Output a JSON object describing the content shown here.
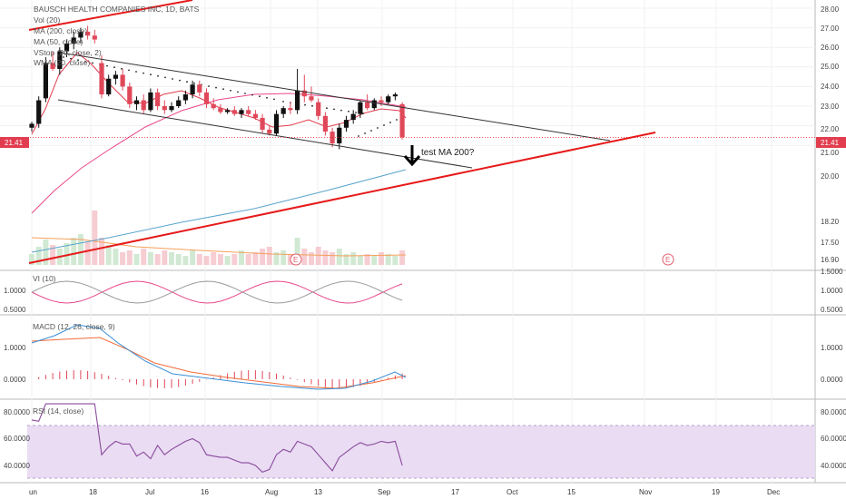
{
  "chart_data": {
    "type": "candlestick",
    "title": "BAUSCH HEALTH COMPANIES INC, 1D, BATS",
    "legend": [
      "Vol (20)",
      "MA (200, close)",
      "MA (50, close)",
      "VStop (20, close, 2)",
      "WMA (20, close)"
    ],
    "price_axis_ticks": [
      "28.00",
      "27.00",
      "26.00",
      "25.00",
      "24.00",
      "23.00",
      "22.00",
      "21.00",
      "20.00",
      "18.20",
      "17.50",
      "16.90"
    ],
    "last_price_label": "21.41",
    "last_price": 21.41,
    "x_axis_labels": [
      "un",
      "18",
      "Jul",
      "16",
      "Aug",
      "13",
      "Sep",
      "17",
      "Oct",
      "15",
      "Nov",
      "19",
      "Dec"
    ],
    "earnings_markers": [
      "E",
      "E"
    ],
    "annotation": "test MA 200?",
    "ohlc": [
      {
        "o": 21.9,
        "h": 22.2,
        "l": 21.7,
        "c": 22.1
      },
      {
        "o": 22.1,
        "h": 23.5,
        "l": 21.9,
        "c": 23.3
      },
      {
        "o": 23.4,
        "h": 25.5,
        "l": 23.2,
        "c": 25.2
      },
      {
        "o": 25.2,
        "h": 25.8,
        "l": 24.8,
        "c": 24.9
      },
      {
        "o": 24.9,
        "h": 26.0,
        "l": 24.6,
        "c": 25.8
      },
      {
        "o": 25.8,
        "h": 26.4,
        "l": 25.5,
        "c": 26.2
      },
      {
        "o": 26.2,
        "h": 26.8,
        "l": 25.9,
        "c": 26.5
      },
      {
        "o": 26.5,
        "h": 27.0,
        "l": 26.2,
        "c": 26.8
      },
      {
        "o": 26.8,
        "h": 27.1,
        "l": 26.4,
        "c": 26.6
      },
      {
        "o": 26.6,
        "h": 26.9,
        "l": 26.2,
        "c": 26.4
      },
      {
        "o": 25.2,
        "h": 25.6,
        "l": 23.4,
        "c": 23.6
      },
      {
        "o": 23.6,
        "h": 24.6,
        "l": 23.5,
        "c": 24.4
      },
      {
        "o": 24.4,
        "h": 24.8,
        "l": 24.1,
        "c": 24.6
      },
      {
        "o": 24.6,
        "h": 24.9,
        "l": 23.8,
        "c": 24.0
      },
      {
        "o": 24.0,
        "h": 24.2,
        "l": 22.9,
        "c": 23.1
      },
      {
        "o": 23.1,
        "h": 23.5,
        "l": 22.8,
        "c": 23.3
      },
      {
        "o": 23.3,
        "h": 23.6,
        "l": 22.6,
        "c": 22.8
      },
      {
        "o": 22.8,
        "h": 23.9,
        "l": 22.7,
        "c": 23.7
      },
      {
        "o": 23.7,
        "h": 23.9,
        "l": 22.8,
        "c": 23.0
      },
      {
        "o": 23.0,
        "h": 23.3,
        "l": 22.6,
        "c": 22.8
      },
      {
        "o": 22.8,
        "h": 23.2,
        "l": 22.7,
        "c": 23.0
      },
      {
        "o": 23.0,
        "h": 23.5,
        "l": 22.9,
        "c": 23.3
      },
      {
        "o": 23.3,
        "h": 23.8,
        "l": 23.1,
        "c": 23.6
      },
      {
        "o": 23.6,
        "h": 24.3,
        "l": 23.4,
        "c": 24.1
      },
      {
        "o": 24.1,
        "h": 24.3,
        "l": 23.5,
        "c": 23.7
      },
      {
        "o": 23.7,
        "h": 23.9,
        "l": 22.9,
        "c": 23.1
      },
      {
        "o": 23.1,
        "h": 23.4,
        "l": 22.8,
        "c": 22.9
      },
      {
        "o": 22.9,
        "h": 23.1,
        "l": 22.6,
        "c": 22.7
      },
      {
        "o": 22.7,
        "h": 22.9,
        "l": 22.6,
        "c": 22.8
      },
      {
        "o": 22.8,
        "h": 23.0,
        "l": 22.5,
        "c": 22.6
      },
      {
        "o": 22.6,
        "h": 22.9,
        "l": 22.4,
        "c": 22.8
      },
      {
        "o": 22.8,
        "h": 23.0,
        "l": 22.5,
        "c": 22.6
      },
      {
        "o": 22.6,
        "h": 22.8,
        "l": 22.3,
        "c": 22.4
      },
      {
        "o": 22.4,
        "h": 22.6,
        "l": 21.6,
        "c": 21.8
      },
      {
        "o": 21.8,
        "h": 22.0,
        "l": 21.5,
        "c": 21.6
      },
      {
        "o": 21.6,
        "h": 22.8,
        "l": 21.5,
        "c": 22.6
      },
      {
        "o": 22.6,
        "h": 23.0,
        "l": 22.4,
        "c": 22.9
      },
      {
        "o": 22.9,
        "h": 23.2,
        "l": 22.6,
        "c": 22.8
      },
      {
        "o": 22.8,
        "h": 24.9,
        "l": 22.6,
        "c": 23.8
      },
      {
        "o": 23.8,
        "h": 24.6,
        "l": 23.2,
        "c": 23.5
      },
      {
        "o": 23.5,
        "h": 24.0,
        "l": 23.2,
        "c": 23.3
      },
      {
        "o": 23.2,
        "h": 23.4,
        "l": 22.3,
        "c": 22.5
      },
      {
        "o": 22.5,
        "h": 22.7,
        "l": 21.5,
        "c": 21.7
      },
      {
        "o": 21.7,
        "h": 21.9,
        "l": 20.9,
        "c": 21.1
      },
      {
        "o": 21.1,
        "h": 22.1,
        "l": 20.8,
        "c": 21.9
      },
      {
        "o": 21.9,
        "h": 22.5,
        "l": 21.7,
        "c": 22.3
      },
      {
        "o": 22.3,
        "h": 22.8,
        "l": 22.1,
        "c": 22.6
      },
      {
        "o": 22.6,
        "h": 23.3,
        "l": 22.4,
        "c": 23.2
      },
      {
        "o": 23.2,
        "h": 23.6,
        "l": 22.8,
        "c": 22.9
      },
      {
        "o": 22.9,
        "h": 23.4,
        "l": 22.8,
        "c": 23.3
      },
      {
        "o": 23.3,
        "h": 23.5,
        "l": 23.0,
        "c": 23.2
      },
      {
        "o": 23.2,
        "h": 23.6,
        "l": 23.1,
        "c": 23.5
      },
      {
        "o": 23.5,
        "h": 23.7,
        "l": 23.3,
        "c": 23.6
      },
      {
        "o": 23.1,
        "h": 23.2,
        "l": 21.3,
        "c": 21.41
      }
    ],
    "vi_panel": {
      "title": "VI (10)",
      "ticks": [
        "1.5000",
        "1.0000",
        "0.5000"
      ]
    },
    "macd_panel": {
      "title": "MACD (12, 26, close, 9)",
      "ticks": [
        "1.0000",
        "0.0000"
      ]
    },
    "rsi_panel": {
      "title": "RSI (14, close)",
      "ticks": [
        "80.0000",
        "60.0000",
        "40.0000"
      ],
      "band": [
        30,
        70
      ],
      "values": [
        74,
        73,
        86,
        86,
        86,
        86,
        86,
        86,
        86,
        86,
        48,
        54,
        58,
        56,
        56,
        47,
        50,
        45,
        55,
        48,
        52,
        55,
        58,
        60,
        57,
        48,
        47,
        46,
        46,
        44,
        42,
        42,
        40,
        35,
        37,
        48,
        52,
        50,
        58,
        56,
        54,
        48,
        42,
        36,
        46,
        50,
        54,
        57,
        55,
        56,
        58,
        57,
        58,
        40
      ]
    },
    "colors": {
      "up": "#111111",
      "down": "#e0485a",
      "trendline": "#e61a1a",
      "channel": "#333333",
      "ma200": "#5ba4cc",
      "wma": "#e23d4f",
      "ma50": "#e8478a",
      "macd": "#3a8fd6",
      "signal": "#f26b3a",
      "rsi": "#8a4a9c",
      "rsi_band": "#e9dcf3"
    }
  }
}
